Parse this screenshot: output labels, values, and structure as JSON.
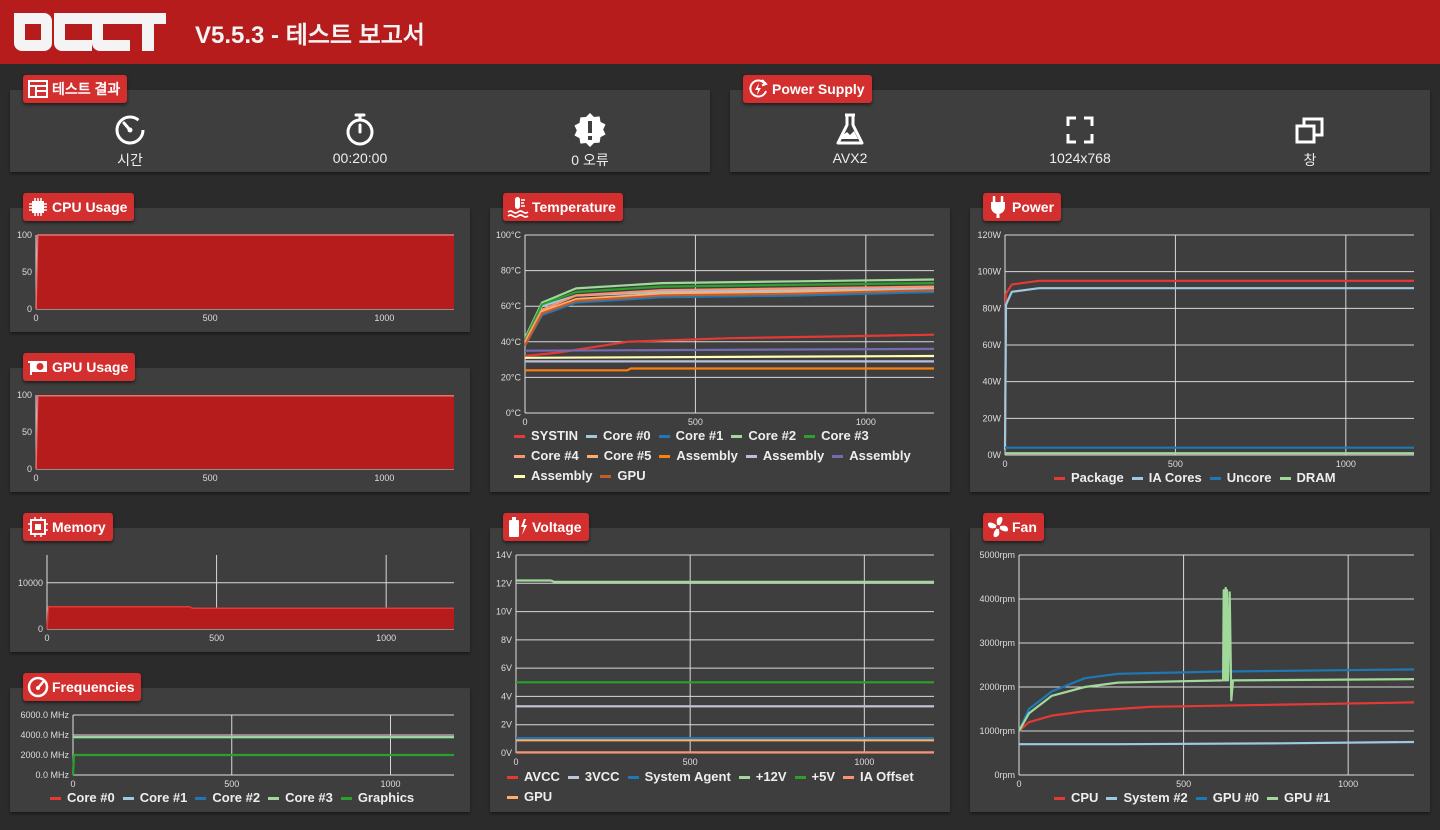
{
  "header": {
    "title": "V5.5.3 - 테스트 보고서",
    "logo_text": "OCCT"
  },
  "test_result": {
    "label": "테스트 결과",
    "items": [
      {
        "icon": "speedometer-icon",
        "value": "시간"
      },
      {
        "icon": "stopwatch-icon",
        "value": "00:20:00"
      },
      {
        "icon": "error-badge-icon",
        "value": "0 오류"
      }
    ]
  },
  "power_supply": {
    "label": "Power Supply",
    "items": [
      {
        "icon": "flask-icon",
        "value": "AVX2"
      },
      {
        "icon": "fullscreen-icon",
        "value": "1024x768"
      },
      {
        "icon": "window-restore-icon",
        "value": "창"
      }
    ]
  },
  "colors": {
    "accent": "#d32f2f",
    "header": "#b71c1c",
    "panel": "#3e3e3e",
    "background": "#2b2b2b"
  },
  "charts": {
    "cpu_usage": {
      "label": "CPU Usage",
      "icon": "cpu-chip-icon",
      "chart_data": {
        "type": "area",
        "ylim": [
          0,
          100
        ],
        "xlim": [
          0,
          1200
        ],
        "yticks": [
          "0",
          "50",
          "100"
        ],
        "xticks": [
          "0",
          "500",
          "1000"
        ],
        "grid": false,
        "series": [
          {
            "color": "#b71c1c",
            "x": [
              0,
              5,
              1200
            ],
            "y": [
              0,
              100,
              100
            ]
          }
        ]
      }
    },
    "gpu_usage": {
      "label": "GPU Usage",
      "icon": "gpu-card-icon",
      "chart_data": {
        "type": "area",
        "ylim": [
          0,
          100
        ],
        "xlim": [
          0,
          1200
        ],
        "yticks": [
          "0",
          "50",
          "100"
        ],
        "xticks": [
          "0",
          "500",
          "1000"
        ],
        "grid": false,
        "series": [
          {
            "color": "#b71c1c",
            "x": [
              0,
              5,
              1200
            ],
            "y": [
              0,
              99,
              99
            ]
          }
        ]
      }
    },
    "memory": {
      "label": "Memory",
      "icon": "memory-chip-icon",
      "chart_data": {
        "type": "area",
        "ylim": [
          0,
          16000
        ],
        "xlim": [
          0,
          1200
        ],
        "yticks": [
          "0",
          "10000"
        ],
        "xticks": [
          "0",
          "500",
          "1000"
        ],
        "grid": true,
        "series": [
          {
            "color": "#b71c1c",
            "line": "#e53935",
            "x": [
              0,
              4,
              420,
              430,
              1200
            ],
            "y": [
              0,
              4800,
              4800,
              4500,
              4500
            ]
          }
        ]
      }
    },
    "frequencies": {
      "label": "Frequencies",
      "icon": "gauge-icon",
      "chart_data": {
        "type": "line",
        "ylim": [
          0,
          6000
        ],
        "xlim": [
          0,
          1200
        ],
        "yticks": [
          "0.0 MHz",
          "2000.0 MHz",
          "4000.0 MHz",
          "6000.0 MHz"
        ],
        "xticks": [
          "0",
          "500",
          "1000"
        ],
        "grid": true,
        "series": [
          {
            "name": "Core #0",
            "color": "#e53935",
            "x": [
              0,
              1200
            ],
            "y": [
              3800,
              3800
            ]
          },
          {
            "name": "Core #1",
            "color": "#9ecae1",
            "x": [
              0,
              1200
            ],
            "y": [
              3780,
              3780
            ]
          },
          {
            "name": "Core #2",
            "color": "#1f77b4",
            "x": [
              0,
              1200
            ],
            "y": [
              3760,
              3760
            ]
          },
          {
            "name": "Core #3",
            "color": "#a1d99b",
            "x": [
              0,
              1200
            ],
            "y": [
              3780,
              3780
            ]
          },
          {
            "name": "Graphics",
            "color": "#2ca02c",
            "x": [
              0,
              3,
              5,
              1200
            ],
            "y": [
              0,
              2000,
              2000,
              2000
            ]
          }
        ]
      }
    },
    "temperature": {
      "label": "Temperature",
      "icon": "thermometer-icon",
      "chart_data": {
        "type": "line",
        "ylim": [
          0,
          100
        ],
        "xlim": [
          0,
          1200
        ],
        "yticks": [
          "0°C",
          "20°C",
          "40°C",
          "60°C",
          "80°C",
          "100°C"
        ],
        "xticks": [
          "0",
          "500",
          "1000"
        ],
        "grid": true,
        "series": [
          {
            "name": "SYSTIN",
            "color": "#e53935",
            "x": [
              0,
              100,
              300,
              600,
              900,
              1200
            ],
            "y": [
              32,
              34,
              40,
              42,
              43,
              44
            ]
          },
          {
            "name": "Core #0",
            "color": "#9ecae1",
            "x": [
              0,
              50,
              150,
              400,
              800,
              1200
            ],
            "y": [
              40,
              60,
              66,
              68,
              69,
              70
            ]
          },
          {
            "name": "Core #1",
            "color": "#1f77b4",
            "x": [
              0,
              50,
              150,
              400,
              800,
              1200
            ],
            "y": [
              38,
              55,
              62,
              65,
              66,
              68
            ]
          },
          {
            "name": "Core #2",
            "color": "#a1d99b",
            "x": [
              0,
              50,
              150,
              400,
              800,
              1200
            ],
            "y": [
              42,
              62,
              70,
              73,
              74,
              75
            ]
          },
          {
            "name": "Core #3",
            "color": "#2ca02c",
            "x": [
              0,
              50,
              150,
              400,
              800,
              1200
            ],
            "y": [
              41,
              61,
              68,
              71,
              72,
              73
            ]
          },
          {
            "name": "Core #4",
            "color": "#fc9272",
            "x": [
              0,
              50,
              150,
              400,
              800,
              1200
            ],
            "y": [
              40,
              58,
              66,
              69,
              70,
              71
            ]
          },
          {
            "name": "Core #5",
            "color": "#fdae6b",
            "x": [
              0,
              50,
              150,
              400,
              800,
              1200
            ],
            "y": [
              39,
              57,
              64,
              67,
              68,
              69
            ]
          },
          {
            "name": "Assembly",
            "color": "#ff7f0e",
            "x": [
              0,
              300,
              310,
              1200
            ],
            "y": [
              24,
              24,
              25,
              25
            ]
          },
          {
            "name": "Assembly",
            "color": "#bcbddc",
            "x": [
              0,
              1200
            ],
            "y": [
              29,
              29
            ]
          },
          {
            "name": "Assembly",
            "color": "#756bb1",
            "x": [
              0,
              1200
            ],
            "y": [
              35,
              36
            ]
          },
          {
            "name": "Assembly",
            "color": "#ffffb2",
            "x": [
              0,
              1200
            ],
            "y": [
              31,
              32
            ]
          },
          {
            "name": "GPU",
            "color": "#c75b2a",
            "x": [
              0,
              50,
              150,
              400,
              800,
              1200
            ],
            "y": [
              38,
              56,
              63,
              66,
              67,
              69
            ]
          }
        ]
      }
    },
    "voltage": {
      "label": "Voltage",
      "icon": "battery-bolt-icon",
      "chart_data": {
        "type": "line",
        "ylim": [
          0,
          14
        ],
        "xlim": [
          0,
          1200
        ],
        "yticks": [
          "0V",
          "2V",
          "4V",
          "6V",
          "8V",
          "10V",
          "12V",
          "14V"
        ],
        "xticks": [
          "0",
          "500",
          "1000"
        ],
        "grid": true,
        "series": [
          {
            "name": "AVCC",
            "color": "#e53935",
            "x": [
              0,
              1200
            ],
            "y": [
              3.3,
              3.3
            ]
          },
          {
            "name": "3VCC",
            "color": "#bcc6dc",
            "x": [
              0,
              1200
            ],
            "y": [
              3.3,
              3.3
            ]
          },
          {
            "name": "System Agent",
            "color": "#1f77b4",
            "x": [
              0,
              1200
            ],
            "y": [
              1.05,
              1.05
            ]
          },
          {
            "name": "+12V",
            "color": "#a1d99b",
            "x": [
              0,
              100,
              110,
              1200
            ],
            "y": [
              12.2,
              12.2,
              12.1,
              12.1
            ]
          },
          {
            "name": "+5V",
            "color": "#2ca02c",
            "x": [
              0,
              1200
            ],
            "y": [
              5.0,
              5.0
            ]
          },
          {
            "name": "IA Offset",
            "color": "#fc9272",
            "x": [
              0,
              1200
            ],
            "y": [
              0.05,
              0.05
            ]
          },
          {
            "name": "GPU",
            "color": "#fdae6b",
            "x": [
              0,
              1200
            ],
            "y": [
              0.9,
              0.9
            ]
          }
        ]
      }
    },
    "power": {
      "label": "Power",
      "icon": "plug-icon",
      "chart_data": {
        "type": "line",
        "ylim": [
          0,
          120
        ],
        "xlim": [
          0,
          1200
        ],
        "yticks": [
          "0W",
          "20W",
          "40W",
          "60W",
          "80W",
          "100W",
          "120W"
        ],
        "xticks": [
          "0",
          "500",
          "1000"
        ],
        "grid": true,
        "series": [
          {
            "name": "Package",
            "color": "#e53935",
            "x": [
              0,
              3,
              20,
              100,
              1200
            ],
            "y": [
              5,
              88,
              93,
              95,
              95
            ]
          },
          {
            "name": "IA Cores",
            "color": "#9ecae1",
            "x": [
              0,
              3,
              20,
              100,
              1200
            ],
            "y": [
              3,
              82,
              89,
              91,
              91
            ]
          },
          {
            "name": "Uncore",
            "color": "#1f77b4",
            "x": [
              0,
              1200
            ],
            "y": [
              4,
              4
            ]
          },
          {
            "name": "DRAM",
            "color": "#a1d99b",
            "x": [
              0,
              1200
            ],
            "y": [
              1,
              1
            ]
          }
        ]
      }
    },
    "fan": {
      "label": "Fan",
      "icon": "fan-icon",
      "chart_data": {
        "type": "line",
        "ylim": [
          0,
          5000
        ],
        "xlim": [
          0,
          1200
        ],
        "yticks": [
          "0rpm",
          "1000rpm",
          "2000rpm",
          "3000rpm",
          "4000rpm",
          "5000rpm"
        ],
        "xticks": [
          "0",
          "500",
          "1000"
        ],
        "grid": true,
        "series": [
          {
            "name": "CPU",
            "color": "#e53935",
            "x": [
              0,
              30,
              100,
              200,
              400,
              800,
              1200
            ],
            "y": [
              1000,
              1200,
              1350,
              1450,
              1550,
              1600,
              1650
            ]
          },
          {
            "name": "System #2",
            "color": "#9ecae1",
            "x": [
              0,
              300,
              800,
              1200
            ],
            "y": [
              700,
              700,
              720,
              750
            ]
          },
          {
            "name": "GPU #0",
            "color": "#1f77b4",
            "x": [
              0,
              30,
              100,
              200,
              300,
              600,
              1200
            ],
            "y": [
              1000,
              1500,
              1900,
              2200,
              2300,
              2350,
              2400
            ]
          },
          {
            "name": "GPU #1",
            "color": "#a1d99b",
            "x": [
              0,
              30,
              100,
              200,
              300,
              620,
              622,
              625,
              628,
              630,
              632,
              635,
              640,
              645,
              650,
              1200
            ],
            "y": [
              1000,
              1400,
              1800,
              2000,
              2100,
              2150,
              4200,
              2150,
              4250,
              2150,
              4200,
              2150,
              4150,
              1700,
              2150,
              2180
            ]
          }
        ]
      }
    }
  }
}
